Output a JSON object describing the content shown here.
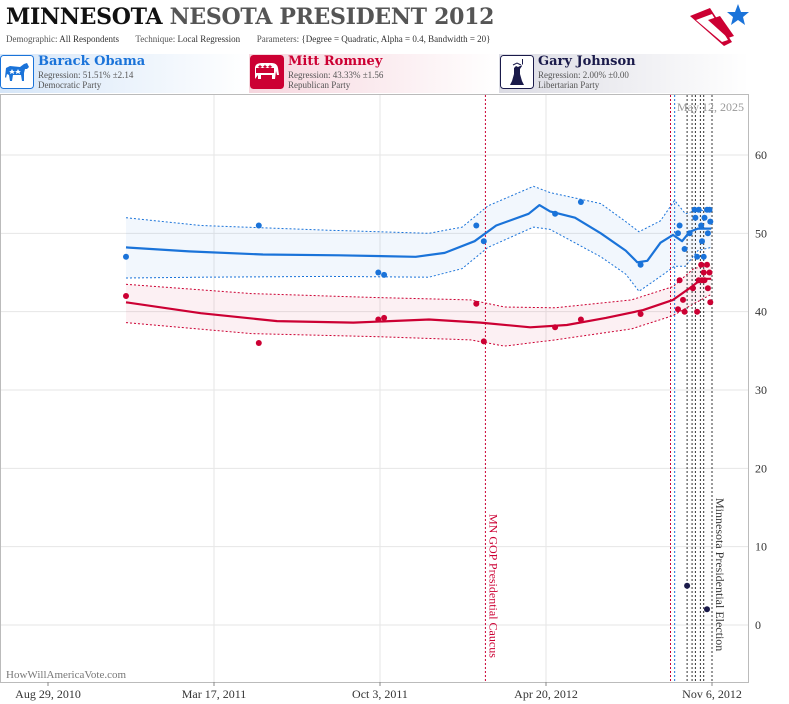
{
  "header": {
    "title_state": "MINNESOTA",
    "title_rest": "NESOTA PRESIDENT 2012",
    "demographic_label": "Demographic:",
    "demographic_value": "All Respondents",
    "technique_label": "Technique:",
    "technique_value": "Local Regression",
    "parameters_label": "Parameters:",
    "parameters_value": "{Degree = Quadratic, Alpha = 0.4, Bandwidth = 20}"
  },
  "candidates": [
    {
      "name": "Barack Obama",
      "regression": "Regression: 51.51% ±2.14",
      "party": "Democratic Party",
      "color": "#1a73d9",
      "icon": "donkey-icon"
    },
    {
      "name": "Mitt Romney",
      "regression": "Regression: 43.33% ±1.56",
      "party": "Republican Party",
      "color": "#cc0033",
      "icon": "elephant-icon"
    },
    {
      "name": "Gary Johnson",
      "regression": "Regression: 2.00% ±0.00",
      "party": "Libertarian Party",
      "color": "#1a1a4a",
      "icon": "statue-of-liberty-icon"
    }
  ],
  "chart_data": {
    "type": "scatter",
    "date_label": "May 12, 2025",
    "watermark": "HowWillAmericaVote.com",
    "x_ticks": [
      {
        "date": "2010-08-29",
        "label": "Aug 29, 2010"
      },
      {
        "date": "2011-03-17",
        "label": "Mar 17, 2011"
      },
      {
        "date": "2011-10-03",
        "label": "Oct 3, 2011"
      },
      {
        "date": "2012-04-20",
        "label": "Apr 20, 2012"
      },
      {
        "date": "2012-11-06",
        "label": "Nov 6, 2012"
      }
    ],
    "ylim": [
      -7,
      68
    ],
    "y_ticks": [
      0,
      10,
      20,
      30,
      40,
      50,
      60
    ],
    "grid": true,
    "annotations": [
      {
        "date": "2012-02-07",
        "label": "MN GOP Presidential Caucus",
        "color": "#cc0033"
      },
      {
        "date": "2012-11-06",
        "label": "Minnesota Presidential Election",
        "color": "#333333"
      }
    ],
    "poll_lines": [
      {
        "date": "2012-09-17",
        "color": "#cc0033"
      },
      {
        "date": "2012-09-22",
        "color": "#1a73d9"
      },
      {
        "date": "2012-10-07",
        "color": "#333333"
      },
      {
        "date": "2012-10-13",
        "color": "#333333"
      },
      {
        "date": "2012-10-17",
        "color": "#333333"
      },
      {
        "date": "2012-10-23",
        "color": "#333333"
      },
      {
        "date": "2012-10-27",
        "color": "#333333"
      }
    ],
    "series": [
      {
        "name": "Barack Obama",
        "color": "#1a73d9",
        "points": [
          [
            "2010-12-01",
            47
          ],
          [
            "2011-05-10",
            51
          ],
          [
            "2011-10-01",
            45
          ],
          [
            "2011-10-08",
            44.7
          ],
          [
            "2012-01-27",
            51
          ],
          [
            "2012-02-05",
            49
          ],
          [
            "2012-05-01",
            52.5
          ],
          [
            "2012-06-01",
            54
          ],
          [
            "2012-08-12",
            46
          ],
          [
            "2012-09-26",
            50
          ],
          [
            "2012-09-28",
            51
          ],
          [
            "2012-10-04",
            48
          ],
          [
            "2012-10-10",
            50
          ],
          [
            "2012-10-16",
            53
          ],
          [
            "2012-10-17",
            52
          ],
          [
            "2012-10-19",
            47
          ],
          [
            "2012-10-21",
            53
          ],
          [
            "2012-10-24",
            51
          ],
          [
            "2012-10-25",
            49
          ],
          [
            "2012-10-27",
            47
          ],
          [
            "2012-10-28",
            52
          ],
          [
            "2012-10-31",
            53
          ],
          [
            "2012-11-01",
            50
          ],
          [
            "2012-11-03",
            53
          ],
          [
            "2012-11-04",
            51.5
          ]
        ],
        "trend": [
          [
            "2010-12-01",
            48.2
          ],
          [
            "2011-02-15",
            47.7
          ],
          [
            "2011-05-15",
            47.3
          ],
          [
            "2011-08-15",
            47.2
          ],
          [
            "2011-11-15",
            47.0
          ],
          [
            "2011-12-20",
            47.5
          ],
          [
            "2012-01-25",
            49.0
          ],
          [
            "2012-02-20",
            51.0
          ],
          [
            "2012-03-30",
            52.5
          ],
          [
            "2012-04-12",
            53.6
          ],
          [
            "2012-04-25",
            52.8
          ],
          [
            "2012-05-25",
            52.0
          ],
          [
            "2012-06-25",
            50.0
          ],
          [
            "2012-07-25",
            47.8
          ],
          [
            "2012-08-08",
            46.3
          ],
          [
            "2012-08-20",
            46.5
          ],
          [
            "2012-09-05",
            48.8
          ],
          [
            "2012-09-20",
            49.8
          ],
          [
            "2012-10-01",
            49.0
          ],
          [
            "2012-10-10",
            50.2
          ],
          [
            "2012-10-20",
            50.6
          ],
          [
            "2012-11-05",
            50.6
          ]
        ],
        "upper": [
          [
            "2010-12-01",
            52.0
          ],
          [
            "2011-03-01",
            51.0
          ],
          [
            "2011-08-01",
            50.4
          ],
          [
            "2011-12-01",
            50.0
          ],
          [
            "2012-01-10",
            50.8
          ],
          [
            "2012-02-10",
            53.5
          ],
          [
            "2012-04-05",
            56.0
          ],
          [
            "2012-04-25",
            55.2
          ],
          [
            "2012-06-25",
            53.8
          ],
          [
            "2012-07-25",
            51.5
          ],
          [
            "2012-08-10",
            50.2
          ],
          [
            "2012-09-05",
            51.6
          ],
          [
            "2012-09-22",
            54.2
          ],
          [
            "2012-10-05",
            52.5
          ],
          [
            "2012-10-20",
            53.0
          ],
          [
            "2012-11-05",
            52.8
          ]
        ],
        "lower": [
          [
            "2010-12-01",
            44.3
          ],
          [
            "2011-03-01",
            44.4
          ],
          [
            "2011-08-01",
            44.5
          ],
          [
            "2011-12-01",
            44.4
          ],
          [
            "2012-01-10",
            45.5
          ],
          [
            "2012-02-10",
            48.2
          ],
          [
            "2012-04-05",
            50.8
          ],
          [
            "2012-04-25",
            50.5
          ],
          [
            "2012-06-25",
            47.0
          ],
          [
            "2012-07-25",
            44.8
          ],
          [
            "2012-08-10",
            42.6
          ],
          [
            "2012-09-05",
            44.5
          ],
          [
            "2012-09-22",
            45.8
          ],
          [
            "2012-10-05",
            45.8
          ],
          [
            "2012-10-20",
            47.8
          ],
          [
            "2012-11-05",
            48.2
          ]
        ]
      },
      {
        "name": "Mitt Romney",
        "color": "#cc0033",
        "points": [
          [
            "2010-12-01",
            42
          ],
          [
            "2011-05-10",
            36
          ],
          [
            "2011-10-01",
            39
          ],
          [
            "2011-10-08",
            39.2
          ],
          [
            "2012-01-27",
            41
          ],
          [
            "2012-02-05",
            36.2
          ],
          [
            "2012-05-01",
            38
          ],
          [
            "2012-06-01",
            39
          ],
          [
            "2012-08-12",
            39.7
          ],
          [
            "2012-09-26",
            40.3
          ],
          [
            "2012-09-28",
            44
          ],
          [
            "2012-10-02",
            41.5
          ],
          [
            "2012-10-04",
            40
          ],
          [
            "2012-10-14",
            43
          ],
          [
            "2012-10-19",
            40
          ],
          [
            "2012-10-21",
            44
          ],
          [
            "2012-10-24",
            46
          ],
          [
            "2012-10-25",
            44
          ],
          [
            "2012-10-27",
            45
          ],
          [
            "2012-10-28",
            44
          ],
          [
            "2012-10-31",
            46
          ],
          [
            "2012-11-01",
            43
          ],
          [
            "2012-11-03",
            45
          ],
          [
            "2012-11-04",
            41.2
          ]
        ],
        "trend": [
          [
            "2010-12-01",
            41.2
          ],
          [
            "2011-03-01",
            39.8
          ],
          [
            "2011-06-01",
            38.8
          ],
          [
            "2011-09-01",
            38.6
          ],
          [
            "2011-12-01",
            39.0
          ],
          [
            "2012-02-01",
            38.6
          ],
          [
            "2012-04-01",
            38.0
          ],
          [
            "2012-05-15",
            38.3
          ],
          [
            "2012-07-01",
            39.2
          ],
          [
            "2012-08-15",
            40.2
          ],
          [
            "2012-09-20",
            41.5
          ],
          [
            "2012-10-10",
            43.0
          ],
          [
            "2012-10-25",
            44.2
          ],
          [
            "2012-11-05",
            44.2
          ]
        ],
        "upper": [
          [
            "2010-12-01",
            43.5
          ],
          [
            "2011-05-01",
            42.3
          ],
          [
            "2011-10-01",
            41.8
          ],
          [
            "2012-01-20",
            41.5
          ],
          [
            "2012-03-01",
            40.6
          ],
          [
            "2012-05-01",
            40.5
          ],
          [
            "2012-08-01",
            41.5
          ],
          [
            "2012-09-20",
            43.2
          ],
          [
            "2012-10-15",
            45.5
          ],
          [
            "2012-11-05",
            46.0
          ]
        ],
        "lower": [
          [
            "2010-12-01",
            38.6
          ],
          [
            "2011-05-01",
            37.2
          ],
          [
            "2011-10-01",
            36.8
          ],
          [
            "2012-01-20",
            36.4
          ],
          [
            "2012-03-01",
            35.6
          ],
          [
            "2012-05-01",
            36.4
          ],
          [
            "2012-08-01",
            37.8
          ],
          [
            "2012-09-20",
            39.5
          ],
          [
            "2012-10-15",
            41.0
          ],
          [
            "2012-11-05",
            42.2
          ]
        ]
      },
      {
        "name": "Gary Johnson",
        "color": "#1a1a4a",
        "points": [
          [
            "2012-10-07",
            5
          ],
          [
            "2012-10-31",
            2
          ]
        ]
      }
    ]
  }
}
